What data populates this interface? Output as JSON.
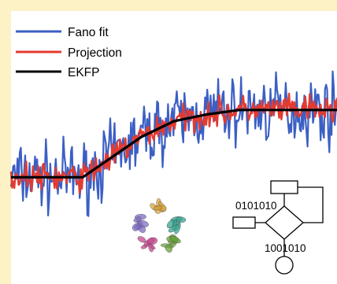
{
  "colors": {
    "page_background": "#fdf2c6",
    "plot_background": "#ffffff",
    "fano": "#3b5fc4",
    "projection": "#e43a2f",
    "ekfp": "#000000"
  },
  "legend": {
    "items": [
      {
        "label": "Fano fit",
        "color": "#3b5fc4"
      },
      {
        "label": "Projection",
        "color": "#e43a2f"
      },
      {
        "label": "EKFP",
        "color": "#000000"
      }
    ]
  },
  "chart_data": {
    "type": "line",
    "title": "",
    "xlabel": "",
    "ylabel": "",
    "xlim": [
      0,
      1
    ],
    "ylim": [
      0,
      1
    ],
    "grid": false,
    "legend_position": "top-left",
    "series": [
      {
        "name": "Fano fit",
        "color": "#3b5fc4",
        "points": 300,
        "noise_amplitude": 0.22
      },
      {
        "name": "Projection",
        "color": "#e43a2f",
        "points": 300,
        "noise_amplitude": 0.09
      },
      {
        "name": "EKFP",
        "color": "#000000",
        "x": [
          0.0,
          0.1,
          0.2,
          0.22,
          0.3,
          0.4,
          0.5,
          0.6,
          0.7,
          0.8,
          0.9,
          1.0
        ],
        "y": [
          0.42,
          0.42,
          0.42,
          0.42,
          0.5,
          0.6,
          0.67,
          0.7,
          0.72,
          0.72,
          0.72,
          0.72
        ]
      }
    ]
  },
  "inset_labels": {
    "code_top": "0101010",
    "code_bottom": "1001010"
  },
  "protein_colors": [
    "#d9a338",
    "#33a38d",
    "#6aa23a",
    "#c8458f",
    "#7f6cc4"
  ]
}
